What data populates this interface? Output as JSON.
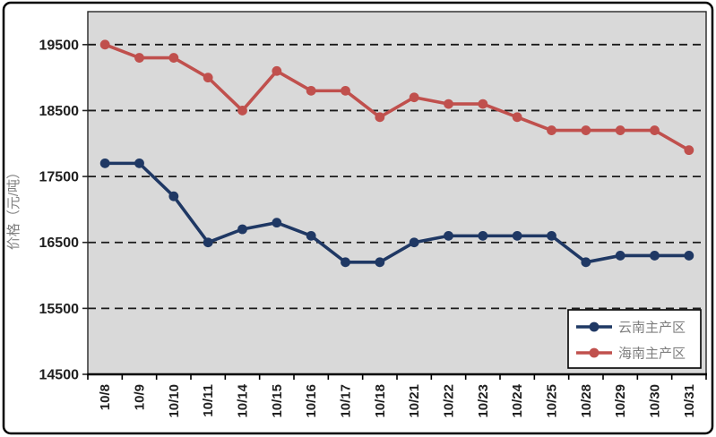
{
  "figure": {
    "background": "#FFFFFF",
    "border_color": "#000000",
    "plot_background": "#D9D9D9",
    "plot_border_color": "#262626",
    "gridline_color": "#1A1A1A",
    "tick_label_color": "#1F1F1F",
    "axis_title_color": "#808080",
    "legend_text_color": "#7F7F7F",
    "legend_background": "#FFFFFF",
    "legend_border_color": "#000000"
  },
  "chart_data": {
    "type": "line",
    "title": "",
    "xlabel": "",
    "ylabel": "价格（元/吨）",
    "categories": [
      "10/8",
      "10/9",
      "10/10",
      "10/11",
      "10/14",
      "10/15",
      "10/16",
      "10/17",
      "10/18",
      "10/21",
      "10/22",
      "10/23",
      "10/24",
      "10/25",
      "10/28",
      "10/29",
      "10/30",
      "10/31"
    ],
    "series": [
      {
        "name": "云南主产区",
        "color": "#1F3864",
        "values": [
          17700,
          17700,
          17200,
          16500,
          16700,
          16800,
          16600,
          16200,
          16200,
          16500,
          16600,
          16600,
          16600,
          16600,
          16200,
          16300,
          16300,
          16300
        ]
      },
      {
        "name": "海南主产区",
        "color": "#C0504D",
        "values": [
          19500,
          19300,
          19300,
          19000,
          18500,
          19100,
          18800,
          18800,
          18400,
          18700,
          18600,
          18600,
          18400,
          18200,
          18200,
          18200,
          18200,
          17900
        ]
      }
    ],
    "y_axis": {
      "min": 14500,
      "max": 20000,
      "major_unit": 1000,
      "tick_labels": [
        "14500",
        "15500",
        "16500",
        "17500",
        "18500",
        "19500"
      ]
    },
    "x_axis": {
      "label_rotation": -90,
      "ticks": "between-categories"
    },
    "grid": "horizontal-dashed",
    "legend_position": "bottom-right"
  }
}
